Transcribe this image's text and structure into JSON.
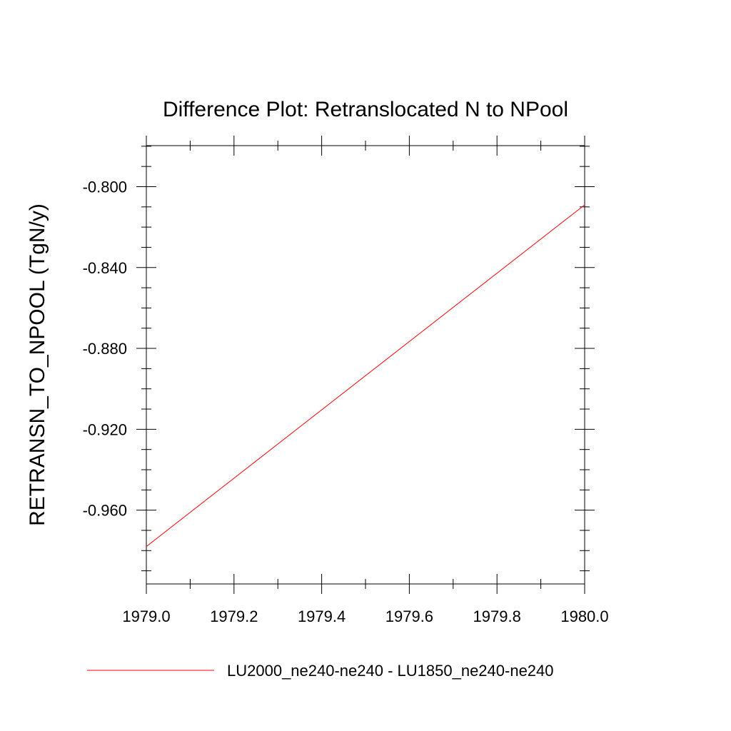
{
  "chart_data": {
    "type": "line",
    "title": "Difference Plot: Retranslocated N to NPool",
    "xlabel": "",
    "ylabel": "RETRANSN_TO_NPOOL  (TgN/y)",
    "xlim": [
      1979.0,
      1980.0
    ],
    "ylim": [
      -0.9965,
      -0.7797
    ],
    "x_ticks": [
      1979.0,
      1979.2,
      1979.4,
      1979.6,
      1979.8,
      1980.0
    ],
    "x_tick_labels": [
      "1979.0",
      "1979.2",
      "1979.4",
      "1979.6",
      "1979.8",
      "1980.0"
    ],
    "y_ticks": [
      -0.96,
      -0.92,
      -0.88,
      -0.84,
      -0.8
    ],
    "y_tick_labels": [
      "-0.960",
      "-0.920",
      "-0.880",
      "-0.840",
      "-0.800"
    ],
    "x_minor_step": 0.1,
    "y_minor_step": 0.01,
    "grid": false,
    "legend_position": "bottom",
    "series": [
      {
        "name": "LU2000_ne240-ne240 - LU1850_ne240-ne240",
        "color": "#ff0000",
        "x": [
          1979.0,
          1980.0
        ],
        "y": [
          -0.978,
          -0.809
        ]
      }
    ]
  }
}
